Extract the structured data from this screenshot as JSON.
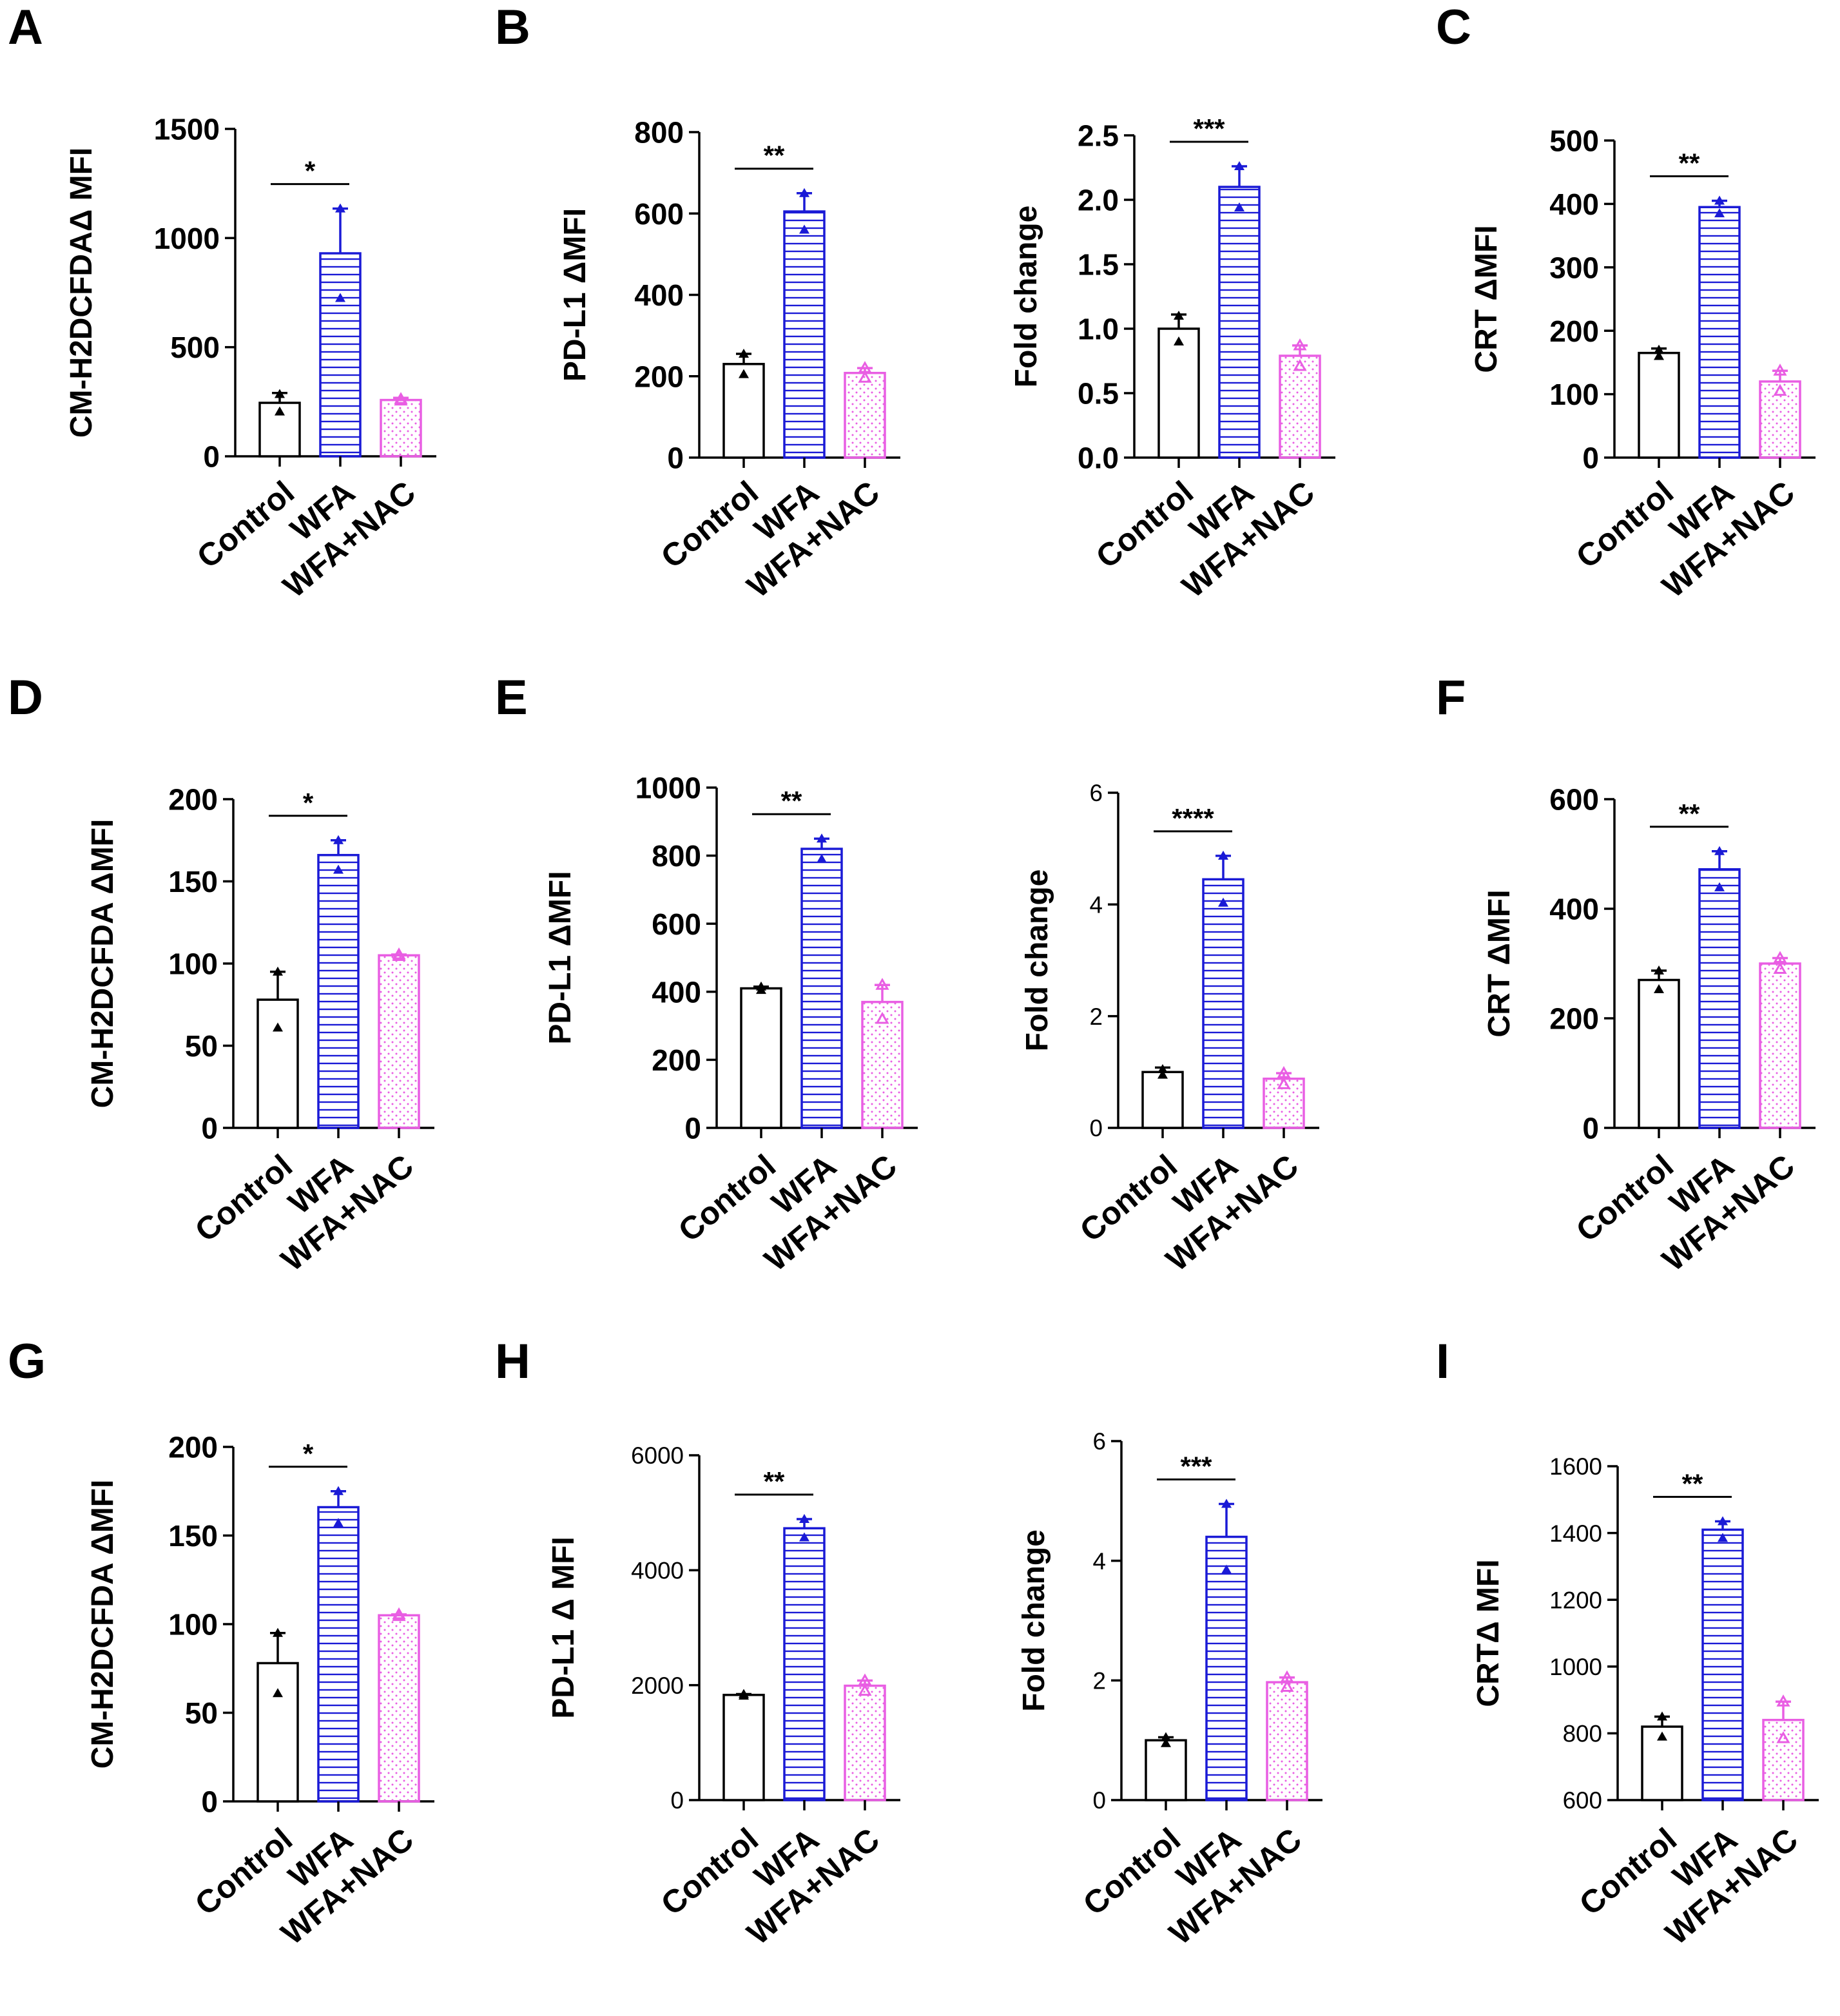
{
  "groups": [
    "Control",
    "WFA",
    "WFA+NAC"
  ],
  "colors": {
    "Control": "#000000",
    "WFA": "#1a1ad6",
    "WFA+NAC": "#e95ee3"
  },
  "panel_labels": [
    "A",
    "B",
    "C",
    "D",
    "E",
    "F",
    "G",
    "H",
    "I"
  ],
  "chart_data": [
    {
      "id": "A1",
      "panel": "A",
      "type": "bar",
      "title": "",
      "xlabel": "",
      "ylabel": "CM-H2DCFDAΔ MFI",
      "categories": [
        "Control",
        "WFA",
        "WFA+NAC"
      ],
      "ylim": [
        0,
        1500
      ],
      "yticks": [
        0,
        500,
        1000,
        1500
      ],
      "tick_labels": [
        "0",
        "500",
        "1000",
        "1500"
      ],
      "values": [
        245,
        930,
        258
      ],
      "errors": [
        45,
        205,
        10
      ],
      "points": [
        [
          285,
          205
        ],
        [
          1135,
          725
        ],
        [
          262,
          255
        ]
      ],
      "significance": [
        {
          "from": 0,
          "to": 1,
          "label": "*"
        }
      ],
      "tick_scale": 1.0
    },
    {
      "id": "B1",
      "panel": "B",
      "type": "bar",
      "title": "",
      "xlabel": "",
      "ylabel": "PD-L1 ΔMFI",
      "categories": [
        "Control",
        "WFA",
        "WFA+NAC"
      ],
      "ylim": [
        0,
        800
      ],
      "yticks": [
        0,
        200,
        400,
        600,
        800
      ],
      "tick_labels": [
        "0",
        "200",
        "400",
        "600",
        "800"
      ],
      "values": [
        230,
        605,
        208
      ],
      "errors": [
        25,
        45,
        12
      ],
      "points": [
        [
          255,
          205
        ],
        [
          650,
          560
        ],
        [
          220,
          196
        ]
      ],
      "significance": [
        {
          "from": 0,
          "to": 1,
          "label": "**"
        }
      ],
      "tick_scale": 1.0
    },
    {
      "id": "B2",
      "panel": "B",
      "type": "bar",
      "title": "",
      "xlabel": "",
      "ylabel": "Fold change",
      "categories": [
        "Control",
        "WFA",
        "WFA+NAC"
      ],
      "ylim": [
        0,
        2.5
      ],
      "yticks": [
        0,
        0.5,
        1,
        1.5,
        2,
        2.5
      ],
      "tick_labels": [
        "0.0",
        "0.5",
        "1.0",
        "1.5",
        "2.0",
        "2.5"
      ],
      "values": [
        1.0,
        2.1,
        0.79
      ],
      "errors": [
        0.11,
        0.16,
        0.08
      ],
      "points": [
        [
          1.1,
          0.9
        ],
        [
          2.26,
          1.94
        ],
        [
          0.87,
          0.71
        ]
      ],
      "significance": [
        {
          "from": 0,
          "to": 1,
          "label": "***"
        }
      ],
      "tick_scale": 1.0
    },
    {
      "id": "C1",
      "panel": "C",
      "type": "bar",
      "title": "",
      "xlabel": "",
      "ylabel": "CRT ΔMFI",
      "categories": [
        "Control",
        "WFA",
        "WFA+NAC"
      ],
      "ylim": [
        0,
        500
      ],
      "yticks": [
        0,
        100,
        200,
        300,
        400,
        500
      ],
      "tick_labels": [
        "0",
        "100",
        "200",
        "300",
        "400",
        "500"
      ],
      "values": [
        165,
        395,
        120
      ],
      "errors": [
        7,
        10,
        17
      ],
      "points": [
        [
          170,
          160
        ],
        [
          405,
          385
        ],
        [
          137,
          105
        ]
      ],
      "significance": [
        {
          "from": 0,
          "to": 1,
          "label": "**"
        }
      ],
      "tick_scale": 1.0
    },
    {
      "id": "D1",
      "panel": "D",
      "type": "bar",
      "title": "",
      "xlabel": "",
      "ylabel": "CM-H2DCFDA ΔMFI",
      "categories": [
        "Control",
        "WFA",
        "WFA+NAC"
      ],
      "ylim": [
        0,
        200
      ],
      "yticks": [
        0,
        50,
        100,
        150,
        200
      ],
      "tick_labels": [
        "0",
        "50",
        "100",
        "150",
        "200"
      ],
      "values": [
        78,
        166,
        105
      ],
      "errors": [
        17,
        9,
        0.5
      ],
      "points": [
        [
          95,
          61
        ],
        [
          175,
          157
        ],
        [
          105.5,
          104.5
        ]
      ],
      "significance": [
        {
          "from": 0,
          "to": 1,
          "label": "*"
        }
      ],
      "tick_scale": 1.0
    },
    {
      "id": "E1",
      "panel": "E",
      "type": "bar",
      "title": "",
      "xlabel": "",
      "ylabel": "PD-L1 ΔMFI",
      "categories": [
        "Control",
        "WFA",
        "WFA+NAC"
      ],
      "ylim": [
        0,
        1000
      ],
      "yticks": [
        0,
        200,
        400,
        600,
        800,
        1000
      ],
      "tick_labels": [
        "0",
        "200",
        "400",
        "600",
        "800",
        "1000"
      ],
      "values": [
        410,
        820,
        370
      ],
      "errors": [
        5,
        30,
        50
      ],
      "points": [
        [
          415,
          405
        ],
        [
          850,
          790
        ],
        [
          420,
          320
        ]
      ],
      "significance": [
        {
          "from": 0,
          "to": 1,
          "label": "**"
        }
      ],
      "tick_scale": 1.0
    },
    {
      "id": "E2",
      "panel": "E",
      "type": "bar",
      "title": "",
      "xlabel": "",
      "ylabel": "Fold change",
      "categories": [
        "Control",
        "WFA",
        "WFA+NAC"
      ],
      "ylim": [
        0,
        6
      ],
      "yticks": [
        0,
        2,
        4,
        6
      ],
      "tick_labels": [
        "0",
        "2",
        "4",
        "6"
      ],
      "values": [
        1.0,
        4.45,
        0.88
      ],
      "errors": [
        0.08,
        0.42,
        0.1
      ],
      "points": [
        [
          1.05,
          0.95
        ],
        [
          4.87,
          4.03
        ],
        [
          0.98,
          0.78
        ]
      ],
      "significance": [
        {
          "from": 0,
          "to": 1,
          "label": "****"
        }
      ],
      "tick_scale": 0.8
    },
    {
      "id": "F1",
      "panel": "F",
      "type": "bar",
      "title": "",
      "xlabel": "",
      "ylabel": "CRT ΔMFI",
      "categories": [
        "Control",
        "WFA",
        "WFA+NAC"
      ],
      "ylim": [
        0,
        600
      ],
      "yticks": [
        0,
        200,
        400,
        600
      ],
      "tick_labels": [
        "0",
        "200",
        "400",
        "600"
      ],
      "values": [
        270,
        472,
        300
      ],
      "errors": [
        17,
        33,
        10
      ],
      "points": [
        [
          287,
          253
        ],
        [
          505,
          439
        ],
        [
          310,
          290
        ]
      ],
      "significance": [
        {
          "from": 0,
          "to": 1,
          "label": "**"
        }
      ],
      "tick_scale": 1.0
    },
    {
      "id": "G1",
      "panel": "G",
      "type": "bar",
      "title": "",
      "xlabel": "",
      "ylabel": "CM-H2DCFDA ΔMFI",
      "categories": [
        "Control",
        "WFA",
        "WFA+NAC"
      ],
      "ylim": [
        0,
        200
      ],
      "yticks": [
        0,
        50,
        100,
        150,
        200
      ],
      "tick_labels": [
        "0",
        "50",
        "100",
        "150",
        "200"
      ],
      "values": [
        78,
        166,
        105
      ],
      "errors": [
        17,
        9,
        0.5
      ],
      "points": [
        [
          95,
          61
        ],
        [
          175,
          157
        ],
        [
          105.5,
          104.5
        ]
      ],
      "significance": [
        {
          "from": 0,
          "to": 1,
          "label": "*"
        }
      ],
      "tick_scale": 1.0
    },
    {
      "id": "H1",
      "panel": "H",
      "type": "bar",
      "title": "",
      "xlabel": "",
      "ylabel": "PD-L1 Δ MFI",
      "categories": [
        "Control",
        "WFA",
        "WFA+NAC"
      ],
      "ylim": [
        0,
        6000
      ],
      "yticks": [
        0,
        2000,
        4000,
        6000
      ],
      "tick_labels": [
        "0",
        "2000",
        "4000",
        "6000"
      ],
      "values": [
        1830,
        4730,
        1990
      ],
      "errors": [
        15,
        160,
        90
      ],
      "points": [
        [
          1845,
          1815
        ],
        [
          4890,
          4570
        ],
        [
          2080,
          1900
        ]
      ],
      "significance": [
        {
          "from": 0,
          "to": 1,
          "label": "**"
        }
      ],
      "tick_scale": 0.8
    },
    {
      "id": "H2",
      "panel": "H",
      "type": "bar",
      "title": "",
      "xlabel": "",
      "ylabel": "Fold change",
      "categories": [
        "Control",
        "WFA",
        "WFA+NAC"
      ],
      "ylim": [
        0,
        6
      ],
      "yticks": [
        0,
        2,
        4,
        6
      ],
      "tick_labels": [
        "0",
        "2",
        "4",
        "6"
      ],
      "values": [
        1.0,
        4.4,
        1.97
      ],
      "errors": [
        0.05,
        0.55,
        0.08
      ],
      "points": [
        [
          1.05,
          0.95
        ],
        [
          4.95,
          3.85
        ],
        [
          2.05,
          1.89
        ]
      ],
      "significance": [
        {
          "from": 0,
          "to": 1,
          "label": "***"
        }
      ],
      "tick_scale": 0.8
    },
    {
      "id": "I1",
      "panel": "I",
      "type": "bar",
      "title": "",
      "xlabel": "",
      "ylabel": "CRTΔ MFI",
      "categories": [
        "Control",
        "WFA",
        "WFA+NAC"
      ],
      "ylim": [
        600,
        1600
      ],
      "yticks": [
        600,
        800,
        1000,
        1200,
        1400,
        1600
      ],
      "tick_labels": [
        "600",
        "800",
        "1000",
        "1200",
        "1400",
        "1600"
      ],
      "values": [
        820,
        1410,
        840
      ],
      "errors": [
        30,
        25,
        55
      ],
      "points": [
        [
          850,
          790
        ],
        [
          1435,
          1385
        ],
        [
          895,
          785
        ]
      ],
      "significance": [
        {
          "from": 0,
          "to": 1,
          "label": "**"
        }
      ],
      "tick_scale": 0.8
    }
  ]
}
